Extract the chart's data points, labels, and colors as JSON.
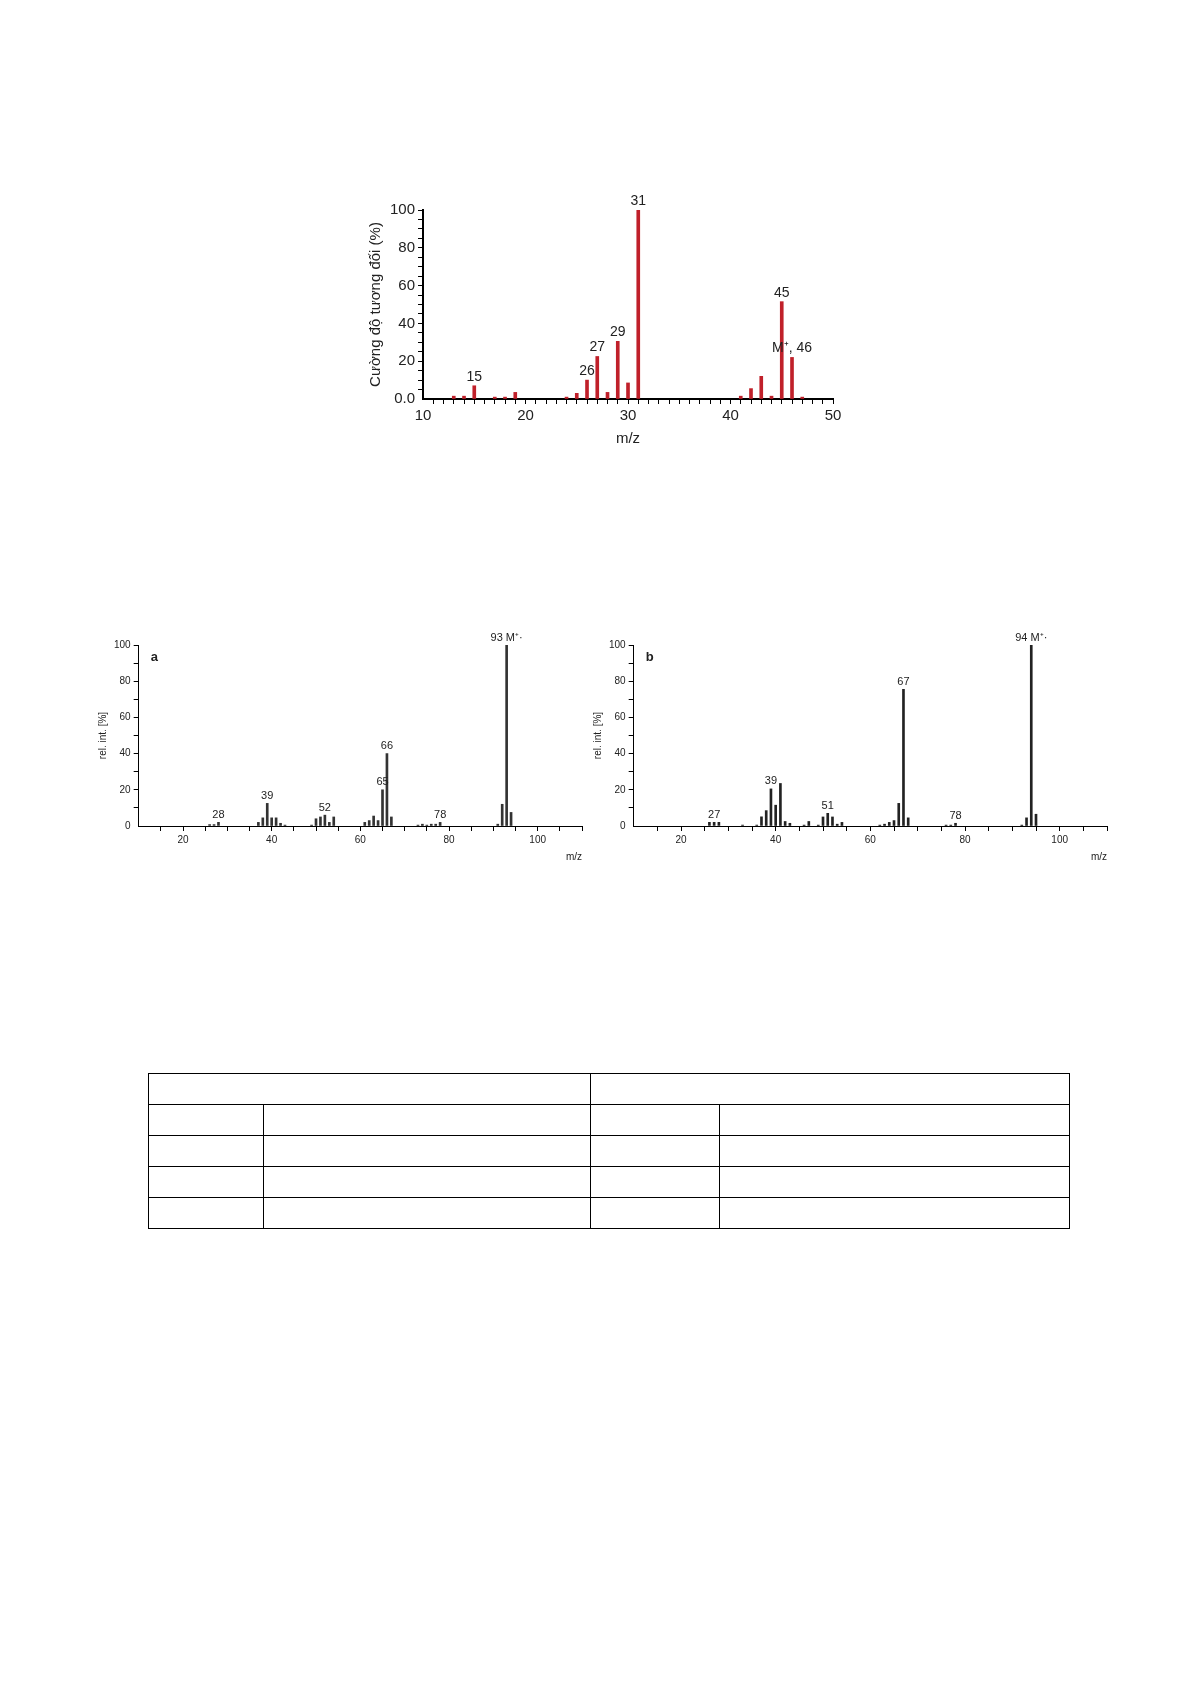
{
  "chart_data": [
    {
      "type": "bar",
      "xlabel": "m/z",
      "ylabel": "Cường độ tương đối (%)",
      "color": "#c0202a",
      "x": [
        13,
        14,
        15,
        17,
        18,
        19,
        24,
        25,
        26,
        27,
        28,
        29,
        30,
        31,
        41,
        42,
        43,
        44,
        45,
        46,
        47
      ],
      "values": [
        1.5,
        1.5,
        7,
        1,
        1,
        3.5,
        1,
        3,
        10,
        22.5,
        3.5,
        30.5,
        8.5,
        100,
        1.5,
        5.5,
        12,
        1.5,
        51.5,
        22,
        1
      ],
      "xlim": [
        10,
        50
      ],
      "xticks": [
        10,
        {
          "value": 11,
          "label": null
        },
        {
          "value": 12,
          "label": null
        },
        {
          "value": 13,
          "label": null
        },
        {
          "value": 14,
          "label": null
        },
        {
          "value": 15,
          "label": null
        },
        {
          "value": 16,
          "label": null
        },
        {
          "value": 17,
          "label": null
        },
        {
          "value": 18,
          "label": null
        },
        {
          "value": 19,
          "label": null
        },
        20,
        {
          "value": 21,
          "label": null
        },
        {
          "value": 22,
          "label": null
        },
        {
          "value": 23,
          "label": null
        },
        {
          "value": 24,
          "label": null
        },
        {
          "value": 25,
          "label": null
        },
        {
          "value": 26,
          "label": null
        },
        {
          "value": 27,
          "label": null
        },
        {
          "value": 28,
          "label": null
        },
        {
          "value": 29,
          "label": null
        },
        30,
        {
          "value": 31,
          "label": null
        },
        {
          "value": 32,
          "label": null
        },
        {
          "value": 33,
          "label": null
        },
        {
          "value": 34,
          "label": null
        },
        {
          "value": 35,
          "label": null
        },
        {
          "value": 36,
          "label": null
        },
        {
          "value": 37,
          "label": null
        },
        {
          "value": 38,
          "label": null
        },
        {
          "value": 39,
          "label": null
        },
        40,
        {
          "value": 41,
          "label": null
        },
        {
          "value": 42,
          "label": null
        },
        {
          "value": 43,
          "label": null
        },
        {
          "value": 44,
          "label": null
        },
        {
          "value": 45,
          "label": null
        },
        {
          "value": 46,
          "label": null
        },
        {
          "value": 47,
          "label": null
        },
        {
          "value": 48,
          "label": null
        },
        {
          "value": 49,
          "label": null
        },
        50
      ],
      "ylim": [
        0,
        100
      ],
      "yticks": [
        {
          "value": 0,
          "label": "0.0"
        },
        {
          "value": 5,
          "label": null
        },
        {
          "value": 10,
          "label": null
        },
        {
          "value": 15,
          "label": null
        },
        20,
        {
          "value": 25,
          "label": null
        },
        {
          "value": 30,
          "label": null
        },
        {
          "value": 35,
          "label": null
        },
        40,
        {
          "value": 45,
          "label": null
        },
        {
          "value": 50,
          "label": null
        },
        {
          "value": 55,
          "label": null
        },
        60,
        {
          "value": 65,
          "label": null
        },
        {
          "value": 70,
          "label": null
        },
        {
          "value": 75,
          "label": null
        },
        80,
        {
          "value": 85,
          "label": null
        },
        {
          "value": 90,
          "label": null
        },
        {
          "value": 95,
          "label": null
        },
        100
      ],
      "annotations": [
        {
          "text": "15",
          "x": 15,
          "y": 7
        },
        {
          "text": "26",
          "x": 26,
          "y": 10
        },
        {
          "text": "27",
          "x": 27,
          "y": 22.5
        },
        {
          "text": "29",
          "x": 29,
          "y": 30.5
        },
        {
          "text": "31",
          "x": 31,
          "y": 100
        },
        {
          "text": "45",
          "x": 45,
          "y": 51.5
        },
        {
          "text": "M⁺, 46",
          "x": 46,
          "y": 22
        }
      ]
    },
    {
      "type": "bar",
      "xlabel": "m/z",
      "ylabel": "rel. int. [%]",
      "color": "#333333",
      "x": [
        26,
        27,
        28,
        37,
        38,
        39,
        40,
        41,
        42,
        43,
        49,
        50,
        51,
        52,
        53,
        54,
        61,
        62,
        63,
        64,
        65,
        66,
        67,
        73,
        74,
        75,
        76,
        77,
        78,
        91,
        92,
        93,
        94
      ],
      "values": [
        0.8,
        0.8,
        2,
        2,
        4.5,
        12.5,
        4.5,
        4.5,
        1.5,
        0.5,
        0.5,
        4,
        5,
        6,
        2,
        5,
        2,
        3,
        5.5,
        3,
        20,
        40,
        5,
        0.5,
        1,
        0.5,
        1,
        1,
        2,
        1,
        12,
        100,
        7.5
      ],
      "xlim": [
        10,
        110
      ],
      "xticks": [
        {
          "value": 15,
          "label": null
        },
        20,
        {
          "value": 25,
          "label": null
        },
        {
          "value": 30,
          "label": null
        },
        {
          "value": 35,
          "label": null
        },
        40,
        {
          "value": 45,
          "label": null
        },
        {
          "value": 50,
          "label": null
        },
        {
          "value": 55,
          "label": null
        },
        60,
        {
          "value": 65,
          "label": null
        },
        {
          "value": 70,
          "label": null
        },
        {
          "value": 75,
          "label": null
        },
        80,
        {
          "value": 85,
          "label": null
        },
        {
          "value": 90,
          "label": null
        },
        {
          "value": 95,
          "label": null
        },
        100,
        {
          "value": 105,
          "label": null
        },
        {
          "value": 110,
          "label": null
        }
      ],
      "ylim": [
        0,
        100
      ],
      "yticks": [
        0,
        {
          "value": 10,
          "label": null
        },
        20,
        {
          "value": 30,
          "label": null
        },
        40,
        {
          "value": 50,
          "label": null
        },
        60,
        {
          "value": 70,
          "label": null
        },
        80,
        {
          "value": 90,
          "label": null
        },
        100
      ],
      "annotations": [
        "a",
        {
          "text": "28",
          "x": 28,
          "y": 2
        },
        {
          "text": "39",
          "x": 39,
          "y": 12.5
        },
        {
          "text": "52",
          "x": 52,
          "y": 6
        },
        {
          "text": "65",
          "x": 65,
          "y": 20
        },
        {
          "text": "66",
          "x": 66,
          "y": 40
        },
        {
          "text": "78",
          "x": 78,
          "y": 2
        },
        {
          "text": "93 M⁺·",
          "x": 93,
          "y": 100
        }
      ]
    },
    {
      "type": "bar",
      "xlabel": "m/z",
      "ylabel": "rel. int. [%]",
      "color": "#222222",
      "x": [
        26,
        27,
        28,
        33,
        36,
        37,
        38,
        39,
        40,
        41,
        42,
        43,
        46,
        47,
        49,
        50,
        51,
        52,
        53,
        54,
        62,
        63,
        64,
        65,
        66,
        67,
        68,
        76,
        77,
        78,
        92,
        93,
        94,
        95
      ],
      "values": [
        2,
        2,
        2,
        0.5,
        0.5,
        5,
        8.5,
        20.5,
        11.5,
        23.5,
        2.5,
        1.5,
        0.5,
        2.5,
        0.5,
        5,
        7,
        5,
        1,
        2,
        0.5,
        1,
        2,
        3,
        12.5,
        75.5,
        4.5,
        0.5,
        0.5,
        1.5,
        0.5,
        4.5,
        100,
        6.5
      ],
      "xlim": [
        10,
        110
      ],
      "xticks": [
        {
          "value": 15,
          "label": null
        },
        20,
        {
          "value": 25,
          "label": null
        },
        {
          "value": 30,
          "label": null
        },
        {
          "value": 35,
          "label": null
        },
        40,
        {
          "value": 45,
          "label": null
        },
        {
          "value": 50,
          "label": null
        },
        {
          "value": 55,
          "label": null
        },
        60,
        {
          "value": 65,
          "label": null
        },
        {
          "value": 70,
          "label": null
        },
        {
          "value": 75,
          "label": null
        },
        80,
        {
          "value": 85,
          "label": null
        },
        {
          "value": 90,
          "label": null
        },
        {
          "value": 95,
          "label": null
        },
        100,
        {
          "value": 105,
          "label": null
        },
        {
          "value": 110,
          "label": null
        }
      ],
      "ylim": [
        0,
        100
      ],
      "yticks": [
        0,
        {
          "value": 10,
          "label": null
        },
        20,
        {
          "value": 30,
          "label": null
        },
        40,
        {
          "value": 50,
          "label": null
        },
        60,
        {
          "value": 70,
          "label": null
        },
        80,
        {
          "value": 90,
          "label": null
        },
        100
      ],
      "annotations": [
        "b",
        {
          "text": "27",
          "x": 27,
          "y": 2
        },
        {
          "text": "39",
          "x": 39,
          "y": 20.5
        },
        {
          "text": "51",
          "x": 51,
          "y": 7
        },
        {
          "text": "67",
          "x": 67,
          "y": 75.5
        },
        {
          "text": "78",
          "x": 78,
          "y": 1.5
        },
        {
          "text": "94 M⁺·",
          "x": 94,
          "y": 100
        }
      ]
    }
  ]
}
